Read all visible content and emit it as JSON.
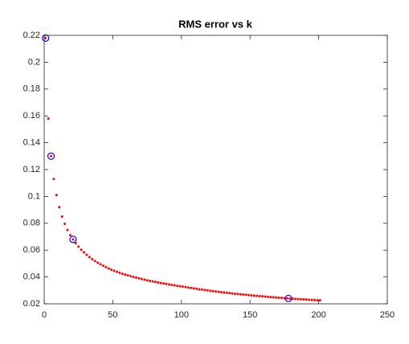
{
  "chart_data": {
    "type": "scatter",
    "title": "RMS error vs k",
    "xlim": [
      0,
      250
    ],
    "xticks": [
      0,
      50,
      100,
      150,
      200,
      250
    ],
    "ylim": [
      0.02,
      0.22
    ],
    "yticks": [
      0.02,
      0.04,
      0.06,
      0.08,
      0.1,
      0.12,
      0.14,
      0.16,
      0.18,
      0.2,
      0.22
    ],
    "series": [
      {
        "color": "#ff0000",
        "marker": "dot",
        "x": [
          1,
          3,
          5,
          7,
          9,
          11,
          13,
          15,
          17,
          19,
          21,
          23,
          25,
          27,
          29,
          31,
          33,
          35,
          37,
          39,
          41,
          43,
          45,
          47,
          49,
          51,
          53,
          55,
          57,
          59,
          61,
          63,
          65,
          67,
          69,
          71,
          73,
          75,
          77,
          79,
          81,
          83,
          85,
          87,
          89,
          91,
          93,
          95,
          97,
          99,
          101,
          103,
          105,
          107,
          109,
          111,
          113,
          115,
          117,
          119,
          121,
          123,
          125,
          127,
          129,
          131,
          133,
          135,
          137,
          139,
          141,
          143,
          145,
          147,
          149,
          151,
          153,
          155,
          157,
          159,
          161,
          163,
          165,
          167,
          169,
          171,
          173,
          175,
          177,
          179,
          181,
          183,
          185,
          187,
          189,
          191,
          193,
          195,
          197,
          199,
          201
        ],
        "values": [
          0.218,
          0.158,
          0.13,
          0.113,
          0.101,
          0.092,
          0.085,
          0.0796,
          0.075,
          0.0712,
          0.068,
          0.0651,
          0.0626,
          0.0603,
          0.0583,
          0.0565,
          0.0548,
          0.0533,
          0.0519,
          0.0506,
          0.0495,
          0.0484,
          0.0473,
          0.0463,
          0.0454,
          0.0446,
          0.0438,
          0.0431,
          0.0424,
          0.0418,
          0.0412,
          0.0406,
          0.04,
          0.0395,
          0.039,
          0.0385,
          0.038,
          0.0375,
          0.0371,
          0.0367,
          0.0363,
          0.0359,
          0.0355,
          0.0351,
          0.0348,
          0.0344,
          0.0341,
          0.0338,
          0.0334,
          0.0331,
          0.0328,
          0.0325,
          0.0321,
          0.0318,
          0.0315,
          0.0312,
          0.0308,
          0.0306,
          0.0303,
          0.03,
          0.0297,
          0.0294,
          0.0292,
          0.0289,
          0.0287,
          0.0284,
          0.0282,
          0.028,
          0.0277,
          0.0275,
          0.0273,
          0.0271,
          0.0269,
          0.0267,
          0.0265,
          0.0263,
          0.0261,
          0.0259,
          0.0257,
          0.0256,
          0.0254,
          0.0252,
          0.025,
          0.0249,
          0.0247,
          0.0245,
          0.0244,
          0.0242,
          0.0241,
          0.0239,
          0.0238,
          0.0237,
          0.0235,
          0.0234,
          0.0233,
          0.0232,
          0.023,
          0.0229,
          0.0228,
          0.0227,
          0.0226
        ]
      },
      {
        "color": "#0000ff",
        "marker": "circle",
        "x": [
          1,
          5,
          21,
          178
        ],
        "values": [
          0.218,
          0.13,
          0.068,
          0.024
        ]
      }
    ]
  }
}
